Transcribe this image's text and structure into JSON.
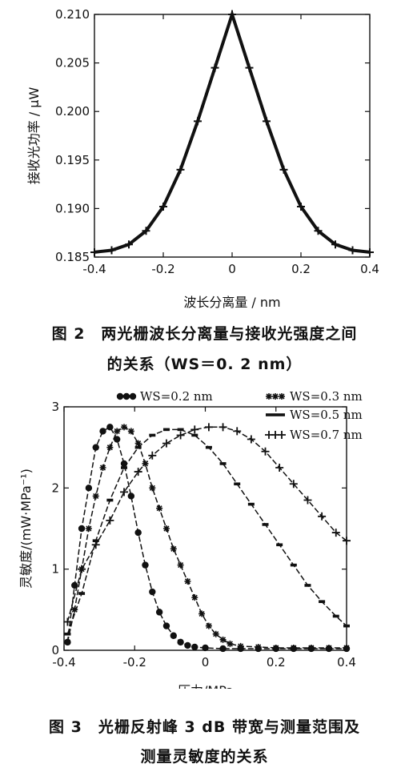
{
  "figure2": {
    "caption_line1": "图 2　两光栅波长分离量与接收光强度之间",
    "caption_line2": "的关系（WS＝0. 2 nm）"
  },
  "figure3": {
    "caption_line1": "图 3　光栅反射峰 3 dB 带宽与测量范围及",
    "caption_line2": "测量灵敏度的关系"
  },
  "chart_data": [
    {
      "type": "scatter",
      "title": "",
      "xlabel": "波长分离量 / nm",
      "ylabel": "接收光功率 / μW",
      "xlim": [
        -0.4,
        0.4
      ],
      "ylim": [
        0.185,
        0.21
      ],
      "xticks": [
        "-0.4",
        "-0.2",
        "0",
        "0.2",
        "0.4"
      ],
      "yticks": [
        "0.185",
        "0.190",
        "0.195",
        "0.200",
        "0.205",
        "0.210"
      ],
      "grid": false,
      "marker_color": "#111111",
      "series": [
        {
          "x": [
            -0.4,
            -0.35,
            -0.3,
            -0.25,
            -0.2,
            -0.15,
            -0.1,
            -0.05,
            0,
            0.05,
            0.1,
            0.15,
            0.2,
            0.25,
            0.3,
            0.35,
            0.4
          ],
          "y": [
            0.1855,
            0.1857,
            0.1863,
            0.1877,
            0.1902,
            0.194,
            0.199,
            0.2045,
            0.21,
            0.2045,
            0.199,
            0.194,
            0.1902,
            0.1877,
            0.1863,
            0.1857,
            0.1855
          ]
        }
      ]
    },
    {
      "type": "line",
      "title": "",
      "xlabel": "压力/MPa",
      "ylabel": "灵敏度/(mW·MPa⁻¹)",
      "xlim": [
        -0.4,
        0.4
      ],
      "ylim": [
        0,
        3
      ],
      "xticks": [
        "-0.4",
        "-0.2",
        "0",
        "0.2",
        "0.4"
      ],
      "yticks": [
        "0",
        "1",
        "2",
        "3"
      ],
      "grid": false,
      "legend_position": "top-right",
      "series": [
        {
          "name": "WS=0.2 nm",
          "marker": "filled-circle",
          "x": [
            -0.39,
            -0.37,
            -0.35,
            -0.33,
            -0.31,
            -0.29,
            -0.27,
            -0.25,
            -0.23,
            -0.21,
            -0.19,
            -0.17,
            -0.15,
            -0.13,
            -0.11,
            -0.09,
            -0.07,
            -0.05,
            -0.03,
            0.0,
            0.05,
            0.1,
            0.15,
            0.2,
            0.25,
            0.3,
            0.35,
            0.4
          ],
          "y": [
            0.1,
            0.8,
            1.5,
            2.0,
            2.5,
            2.7,
            2.75,
            2.6,
            2.3,
            1.9,
            1.45,
            1.05,
            0.72,
            0.47,
            0.3,
            0.18,
            0.1,
            0.06,
            0.04,
            0.03,
            0.02,
            0.02,
            0.02,
            0.02,
            0.02,
            0.02,
            0.02,
            0.02
          ]
        },
        {
          "name": "WS=0.3 nm",
          "marker": "star",
          "x": [
            -0.39,
            -0.37,
            -0.35,
            -0.33,
            -0.31,
            -0.29,
            -0.27,
            -0.25,
            -0.23,
            -0.21,
            -0.19,
            -0.17,
            -0.15,
            -0.13,
            -0.11,
            -0.09,
            -0.07,
            -0.05,
            -0.03,
            -0.01,
            0.01,
            0.03,
            0.05,
            0.07,
            0.1,
            0.15,
            0.2,
            0.25,
            0.3,
            0.35,
            0.4
          ],
          "y": [
            0.1,
            0.5,
            1.0,
            1.5,
            1.9,
            2.25,
            2.5,
            2.7,
            2.75,
            2.7,
            2.55,
            2.3,
            2.0,
            1.75,
            1.5,
            1.25,
            1.05,
            0.85,
            0.65,
            0.45,
            0.3,
            0.2,
            0.13,
            0.08,
            0.05,
            0.04,
            0.03,
            0.03,
            0.03,
            0.03,
            0.03
          ]
        },
        {
          "name": "WS=0.5 nm",
          "marker": "dash",
          "x": [
            -0.39,
            -0.35,
            -0.31,
            -0.27,
            -0.23,
            -0.19,
            -0.15,
            -0.11,
            -0.07,
            -0.03,
            0.01,
            0.05,
            0.09,
            0.13,
            0.17,
            0.21,
            0.25,
            0.29,
            0.33,
            0.37,
            0.4
          ],
          "y": [
            0.2,
            0.7,
            1.35,
            1.85,
            2.25,
            2.5,
            2.65,
            2.72,
            2.72,
            2.65,
            2.5,
            2.3,
            2.05,
            1.8,
            1.55,
            1.3,
            1.05,
            0.8,
            0.6,
            0.42,
            0.3
          ]
        },
        {
          "name": "WS=0.7 nm",
          "marker": "plus",
          "x": [
            -0.39,
            -0.35,
            -0.31,
            -0.27,
            -0.23,
            -0.19,
            -0.15,
            -0.11,
            -0.07,
            -0.03,
            0.01,
            0.05,
            0.09,
            0.13,
            0.17,
            0.21,
            0.25,
            0.29,
            0.33,
            0.37,
            0.4
          ],
          "y": [
            0.35,
            1.0,
            1.3,
            1.6,
            1.95,
            2.2,
            2.4,
            2.55,
            2.65,
            2.72,
            2.75,
            2.75,
            2.7,
            2.6,
            2.45,
            2.25,
            2.05,
            1.85,
            1.65,
            1.45,
            1.35
          ]
        }
      ]
    }
  ]
}
